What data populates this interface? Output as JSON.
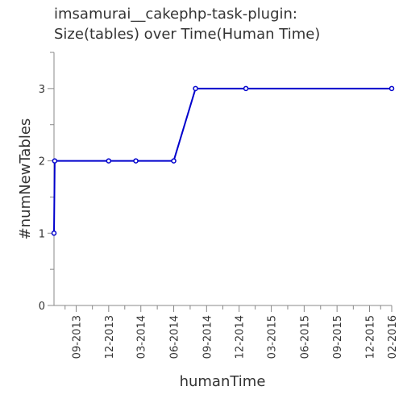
{
  "chart_data": {
    "type": "line",
    "title_lines": [
      "imsamurai__cakephp-task-plugin:",
      "Size(tables) over Time(Human Time)"
    ],
    "xlabel": "humanTime",
    "ylabel": "#numNewTables",
    "x_ticks": [
      "09-2013",
      "12-2013",
      "03-2014",
      "06-2014",
      "09-2014",
      "12-2014",
      "03-2015",
      "06-2015",
      "09-2015",
      "12-2015",
      "02-2016"
    ],
    "y_ticks": [
      0,
      1,
      2,
      3
    ],
    "ylim": [
      0,
      3.5
    ],
    "xlim": [
      "2013-07-01",
      "2016-02-01"
    ],
    "series": [
      {
        "color": "#0000cc",
        "points": [
          {
            "x": "2013-07-01",
            "y": 1
          },
          {
            "x": "2013-07-03",
            "y": 2
          },
          {
            "x": "2013-12-01",
            "y": 2
          },
          {
            "x": "2014-02-15",
            "y": 2
          },
          {
            "x": "2014-06-01",
            "y": 2
          },
          {
            "x": "2014-08-01",
            "y": 3
          },
          {
            "x": "2014-12-20",
            "y": 3
          },
          {
            "x": "2016-02-01",
            "y": 3
          }
        ]
      }
    ]
  }
}
